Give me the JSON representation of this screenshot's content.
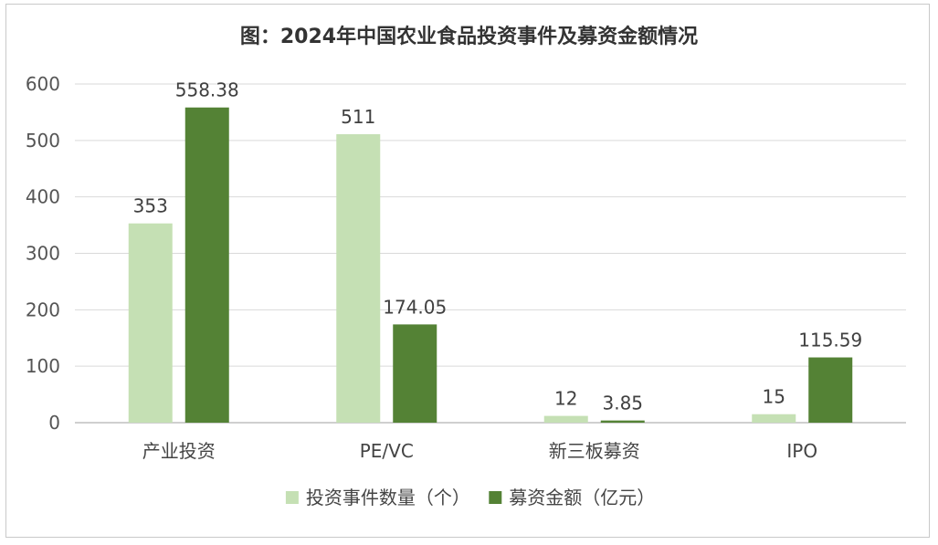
{
  "chart_data": {
    "type": "bar",
    "title": "图：2024年中国农业食品投资事件及募资金额情况",
    "categories": [
      "产业投资",
      "PE/VC",
      "新三板募资",
      "IPO"
    ],
    "series": [
      {
        "name": "投资事件数量（个）",
        "values": [
          353,
          511,
          12,
          15
        ],
        "labels": [
          "353",
          "511",
          "12",
          "15"
        ],
        "color": "#c5e0b4"
      },
      {
        "name": "募资金额（亿元）",
        "values": [
          558.38,
          174.05,
          3.85,
          115.59
        ],
        "labels": [
          "558.38",
          "174.05",
          "3.85",
          "115.59"
        ],
        "color": "#548235"
      }
    ],
    "yticks": [
      "0",
      "100",
      "200",
      "300",
      "400",
      "500",
      "600"
    ],
    "ylim": [
      0,
      600
    ],
    "grid": true,
    "legend": "bottom",
    "colors": {
      "gridline": "#d9d9d9",
      "axis": "#bfbfbf"
    }
  }
}
